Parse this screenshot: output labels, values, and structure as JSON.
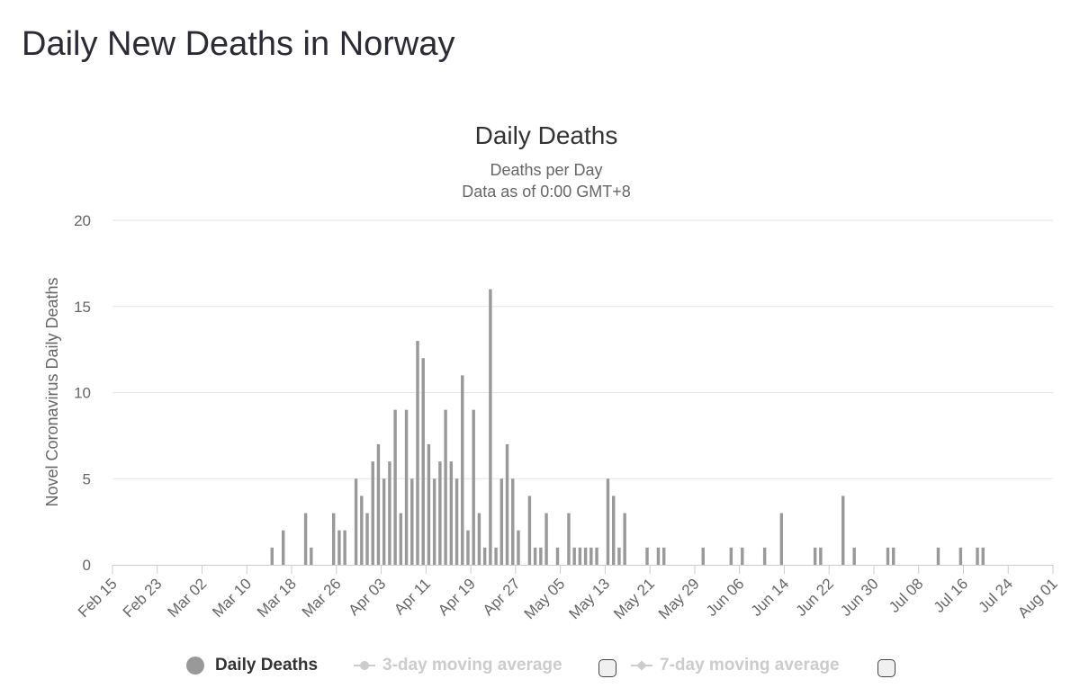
{
  "page": {
    "title": "Daily New Deaths in Norway"
  },
  "chart_data": {
    "type": "bar",
    "title": "Daily Deaths",
    "subtitle_lines": [
      "Deaths per Day",
      "Data as of 0:00 GMT+8"
    ],
    "ylabel": "Novel Coronavirus Daily Deaths",
    "xlabel": "",
    "ylim": [
      0,
      20
    ],
    "yticks": [
      0,
      5,
      10,
      15,
      20
    ],
    "x_range": [
      "2020-02-15",
      "2020-08-01"
    ],
    "xtick_labels": [
      "Feb 15",
      "Feb 23",
      "Mar 02",
      "Mar 10",
      "Mar 18",
      "Mar 26",
      "Apr 03",
      "Apr 11",
      "Apr 19",
      "Apr 27",
      "May 05",
      "May 13",
      "May 21",
      "May 29",
      "Jun 06",
      "Jun 14",
      "Jun 22",
      "Jun 30",
      "Jul 08",
      "Jul 16",
      "Jul 24",
      "Aug 01"
    ],
    "bar_color": "#999999",
    "series": [
      {
        "name": "Daily Deaths",
        "points": [
          {
            "date": "2020-03-14",
            "value": 1
          },
          {
            "date": "2020-03-16",
            "value": 2
          },
          {
            "date": "2020-03-20",
            "value": 3
          },
          {
            "date": "2020-03-21",
            "value": 1
          },
          {
            "date": "2020-03-25",
            "value": 3
          },
          {
            "date": "2020-03-26",
            "value": 2
          },
          {
            "date": "2020-03-27",
            "value": 2
          },
          {
            "date": "2020-03-29",
            "value": 5
          },
          {
            "date": "2020-03-30",
            "value": 4
          },
          {
            "date": "2020-03-31",
            "value": 3
          },
          {
            "date": "2020-04-01",
            "value": 6
          },
          {
            "date": "2020-04-02",
            "value": 7
          },
          {
            "date": "2020-04-03",
            "value": 5
          },
          {
            "date": "2020-04-04",
            "value": 6
          },
          {
            "date": "2020-04-05",
            "value": 9
          },
          {
            "date": "2020-04-06",
            "value": 3
          },
          {
            "date": "2020-04-07",
            "value": 9
          },
          {
            "date": "2020-04-08",
            "value": 5
          },
          {
            "date": "2020-04-09",
            "value": 13
          },
          {
            "date": "2020-04-10",
            "value": 12
          },
          {
            "date": "2020-04-11",
            "value": 7
          },
          {
            "date": "2020-04-12",
            "value": 5
          },
          {
            "date": "2020-04-13",
            "value": 6
          },
          {
            "date": "2020-04-14",
            "value": 9
          },
          {
            "date": "2020-04-15",
            "value": 6
          },
          {
            "date": "2020-04-16",
            "value": 5
          },
          {
            "date": "2020-04-17",
            "value": 11
          },
          {
            "date": "2020-04-18",
            "value": 2
          },
          {
            "date": "2020-04-19",
            "value": 9
          },
          {
            "date": "2020-04-20",
            "value": 3
          },
          {
            "date": "2020-04-21",
            "value": 1
          },
          {
            "date": "2020-04-22",
            "value": 16
          },
          {
            "date": "2020-04-23",
            "value": 1
          },
          {
            "date": "2020-04-24",
            "value": 5
          },
          {
            "date": "2020-04-25",
            "value": 7
          },
          {
            "date": "2020-04-26",
            "value": 5
          },
          {
            "date": "2020-04-27",
            "value": 2
          },
          {
            "date": "2020-04-29",
            "value": 4
          },
          {
            "date": "2020-04-30",
            "value": 1
          },
          {
            "date": "2020-05-01",
            "value": 1
          },
          {
            "date": "2020-05-02",
            "value": 3
          },
          {
            "date": "2020-05-04",
            "value": 1
          },
          {
            "date": "2020-05-06",
            "value": 3
          },
          {
            "date": "2020-05-07",
            "value": 1
          },
          {
            "date": "2020-05-08",
            "value": 1
          },
          {
            "date": "2020-05-09",
            "value": 1
          },
          {
            "date": "2020-05-10",
            "value": 1
          },
          {
            "date": "2020-05-11",
            "value": 1
          },
          {
            "date": "2020-05-13",
            "value": 5
          },
          {
            "date": "2020-05-14",
            "value": 4
          },
          {
            "date": "2020-05-15",
            "value": 1
          },
          {
            "date": "2020-05-16",
            "value": 3
          },
          {
            "date": "2020-05-20",
            "value": 1
          },
          {
            "date": "2020-05-22",
            "value": 1
          },
          {
            "date": "2020-05-23",
            "value": 1
          },
          {
            "date": "2020-05-30",
            "value": 1
          },
          {
            "date": "2020-06-04",
            "value": 1
          },
          {
            "date": "2020-06-06",
            "value": 1
          },
          {
            "date": "2020-06-10",
            "value": 1
          },
          {
            "date": "2020-06-13",
            "value": 3
          },
          {
            "date": "2020-06-19",
            "value": 1
          },
          {
            "date": "2020-06-20",
            "value": 1
          },
          {
            "date": "2020-06-24",
            "value": 4
          },
          {
            "date": "2020-06-26",
            "value": 1
          },
          {
            "date": "2020-07-02",
            "value": 1
          },
          {
            "date": "2020-07-03",
            "value": 1
          },
          {
            "date": "2020-07-11",
            "value": 1
          },
          {
            "date": "2020-07-15",
            "value": 1
          },
          {
            "date": "2020-07-18",
            "value": 1
          },
          {
            "date": "2020-07-19",
            "value": 1
          }
        ]
      }
    ],
    "legend": {
      "position": "bottom",
      "items": [
        {
          "label": "Daily Deaths",
          "active": true
        },
        {
          "label": "3-day moving average",
          "active": false
        },
        {
          "label": "7-day moving average",
          "active": false
        }
      ]
    }
  }
}
